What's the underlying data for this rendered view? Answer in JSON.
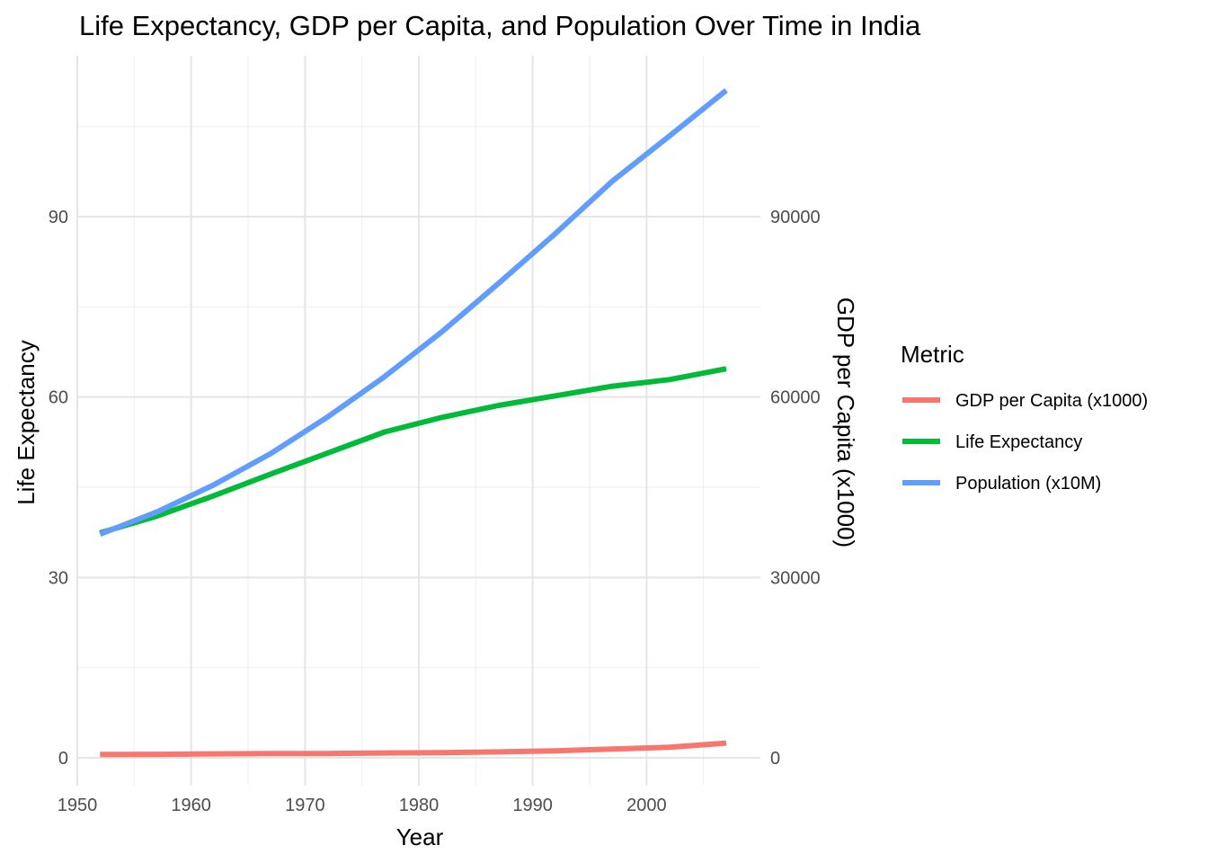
{
  "chart_data": {
    "type": "line",
    "title": "Life Expectancy, GDP per Capita, and Population Over Time in India",
    "xlabel": "Year",
    "ylabel": "Life Expectancy",
    "y2label": "GDP per Capita (x1000)",
    "xlim": [
      1950,
      2010
    ],
    "ylim": [
      0,
      115
    ],
    "xticks": [
      1950,
      1960,
      1970,
      1980,
      1990,
      2000
    ],
    "yticks": [
      0,
      30,
      60,
      90
    ],
    "y2ticks": [
      "0",
      "30000",
      "60000",
      "90000"
    ],
    "legend": {
      "title": "Metric",
      "position": "right"
    },
    "grid": true,
    "x": [
      1952,
      1957,
      1962,
      1967,
      1972,
      1977,
      1982,
      1987,
      1992,
      1997,
      2002,
      2007
    ],
    "series": [
      {
        "name": "GDP per Capita (x1000)",
        "color": "#F8766D",
        "values": [
          0.55,
          0.59,
          0.66,
          0.7,
          0.72,
          0.81,
          0.86,
          0.98,
          1.16,
          1.46,
          1.75,
          2.45
        ]
      },
      {
        "name": "Life Expectancy",
        "color": "#00BA38",
        "values": [
          37.4,
          40.2,
          43.6,
          47.2,
          50.7,
          54.2,
          56.6,
          58.6,
          60.2,
          61.8,
          62.9,
          64.7
        ]
      },
      {
        "name": "Population (x10M)",
        "color": "#619CFF",
        "values": [
          37.2,
          40.9,
          45.4,
          50.6,
          56.7,
          63.4,
          70.8,
          78.9,
          87.2,
          95.9,
          103.4,
          111.0
        ]
      }
    ]
  }
}
